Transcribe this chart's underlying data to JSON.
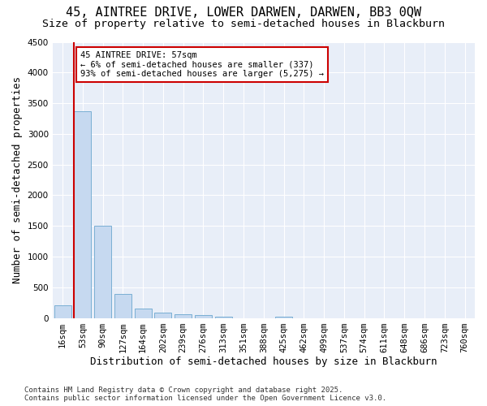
{
  "title_line1": "45, AINTREE DRIVE, LOWER DARWEN, DARWEN, BB3 0QW",
  "title_line2": "Size of property relative to semi-detached houses in Blackburn",
  "xlabel": "Distribution of semi-detached houses by size in Blackburn",
  "ylabel": "Number of semi-detached properties",
  "categories": [
    "16sqm",
    "53sqm",
    "90sqm",
    "127sqm",
    "164sqm",
    "202sqm",
    "239sqm",
    "276sqm",
    "313sqm",
    "351sqm",
    "388sqm",
    "425sqm",
    "462sqm",
    "499sqm",
    "537sqm",
    "574sqm",
    "611sqm",
    "648sqm",
    "686sqm",
    "723sqm",
    "760sqm"
  ],
  "values": [
    200,
    3370,
    1500,
    390,
    155,
    90,
    60,
    42,
    20,
    0,
    0,
    20,
    0,
    0,
    0,
    0,
    0,
    0,
    0,
    0,
    0
  ],
  "bar_color": "#c6d9f0",
  "bar_edge_color": "#7aafd4",
  "vline_color": "#cc0000",
  "annotation_title": "45 AINTREE DRIVE: 57sqm",
  "annotation_line1": "← 6% of semi-detached houses are smaller (337)",
  "annotation_line2": "93% of semi-detached houses are larger (5,275) →",
  "annotation_box_color": "white",
  "annotation_box_edge": "#cc0000",
  "ylim": [
    0,
    4500
  ],
  "yticks": [
    0,
    500,
    1000,
    1500,
    2000,
    2500,
    3000,
    3500,
    4000,
    4500
  ],
  "footer_line1": "Contains HM Land Registry data © Crown copyright and database right 2025.",
  "footer_line2": "Contains public sector information licensed under the Open Government Licence v3.0.",
  "plot_bg_color": "#e8eef8",
  "fig_bg_color": "#ffffff",
  "title_fontsize": 11,
  "subtitle_fontsize": 9.5,
  "tick_fontsize": 7.5,
  "label_fontsize": 9,
  "footer_fontsize": 6.5
}
